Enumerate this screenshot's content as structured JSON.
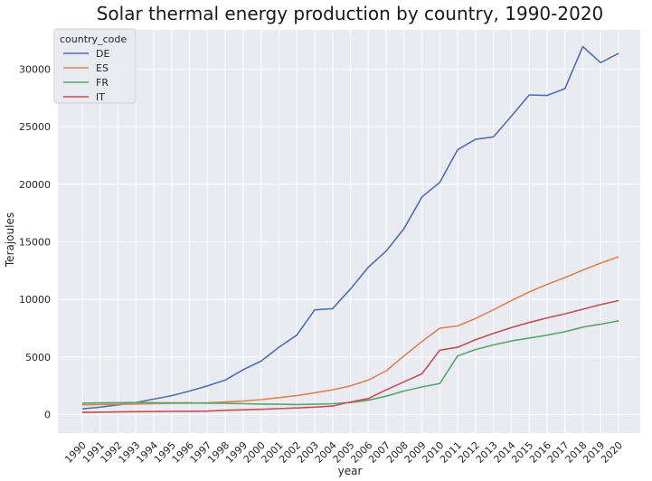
{
  "chart_data": {
    "type": "line",
    "title": "Solar thermal energy production by country, 1990-2020",
    "xlabel": "year",
    "ylabel": "Terajoules",
    "ylim": [
      -1600,
      33400
    ],
    "yticks": [
      0,
      5000,
      10000,
      15000,
      20000,
      25000,
      30000
    ],
    "grid": true,
    "legend": {
      "title": "country_code",
      "placement": "top-left"
    },
    "x": [
      "1990",
      "1991",
      "1992",
      "1993",
      "1994",
      "1995",
      "1996",
      "1997",
      "1998",
      "1999",
      "2000",
      "2001",
      "2002",
      "2003",
      "2004",
      "2005",
      "2006",
      "2007",
      "2008",
      "2009",
      "2010",
      "2011",
      "2012",
      "2013",
      "2014",
      "2015",
      "2016",
      "2017",
      "2018",
      "2019",
      "2020"
    ],
    "series": [
      {
        "name": "DE",
        "color": "#4c72b0",
        "values": [
          500,
          650,
          850,
          1050,
          1350,
          1650,
          2050,
          2500,
          3000,
          3900,
          4650,
          5850,
          6900,
          9100,
          9200,
          10900,
          12800,
          14200,
          16150,
          18900,
          20150,
          23000,
          23900,
          24100,
          25900,
          27750,
          27700,
          28300,
          31950,
          30550,
          31350
        ]
      },
      {
        "name": "ES",
        "color": "#dd8452",
        "values": [
          850,
          880,
          900,
          920,
          950,
          980,
          1000,
          1020,
          1100,
          1180,
          1300,
          1480,
          1650,
          1900,
          2150,
          2500,
          3000,
          3800,
          5100,
          6350,
          7500,
          7700,
          8350,
          9100,
          9900,
          10650,
          11300,
          11900,
          12550,
          13150,
          13700
        ]
      },
      {
        "name": "FR",
        "color": "#55a868",
        "values": [
          1000,
          1020,
          1040,
          1050,
          1040,
          1030,
          1020,
          1000,
          980,
          950,
          920,
          900,
          880,
          900,
          950,
          1050,
          1250,
          1600,
          2050,
          2400,
          2700,
          5100,
          5650,
          6050,
          6400,
          6650,
          6900,
          7200,
          7600,
          7850,
          8150
        ]
      },
      {
        "name": "IT",
        "color": "#c44e52",
        "values": [
          200,
          220,
          240,
          260,
          270,
          280,
          290,
          310,
          380,
          420,
          460,
          520,
          580,
          650,
          750,
          1100,
          1400,
          2150,
          2850,
          3550,
          5600,
          5850,
          6500,
          7050,
          7550,
          8000,
          8400,
          8750,
          9150,
          9550,
          9900
        ]
      }
    ]
  }
}
